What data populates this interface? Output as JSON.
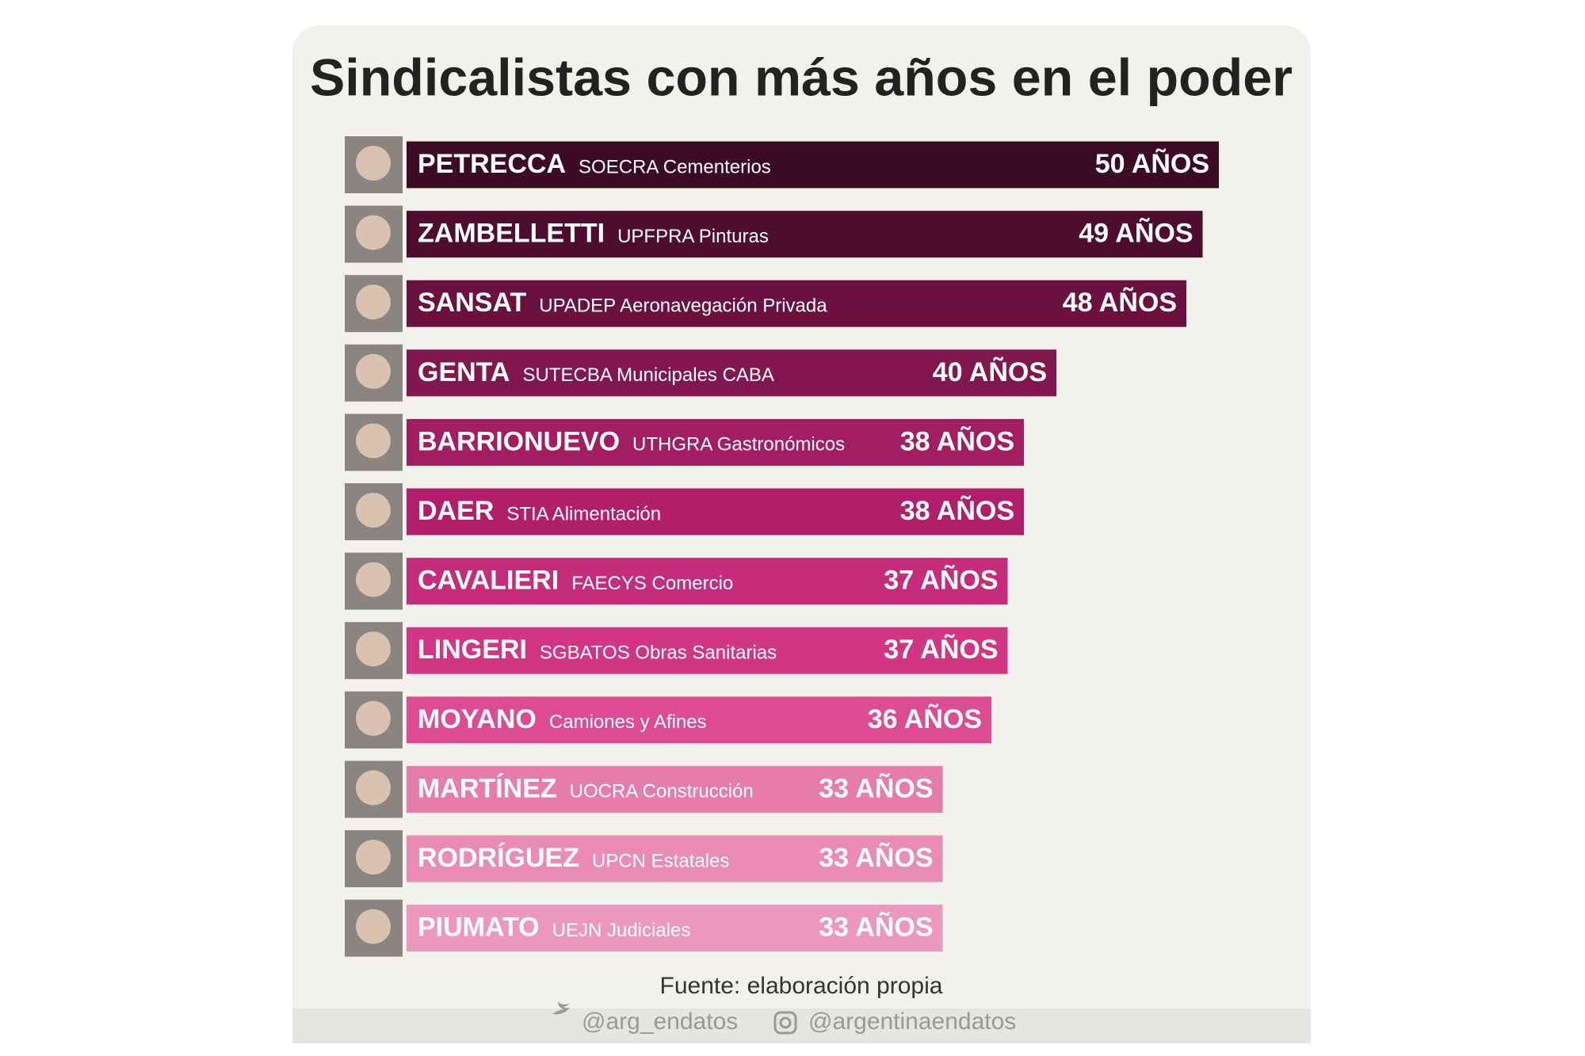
{
  "chart_data": {
    "type": "bar",
    "orientation": "horizontal",
    "title": "Sindicalistas con más años en el poder",
    "categories": [
      "PETRECCA",
      "ZAMBELLETTI",
      "SANSAT",
      "GENTA",
      "BARRIONUEVO",
      "DAER",
      "CAVALIERI",
      "LINGERI",
      "MOYANO",
      "MARTÍNEZ",
      "RODRÍGUEZ",
      "PIUMATO"
    ],
    "unions": [
      "SOECRA Cementerios",
      "UPFPRA Pinturas",
      "UPADEP Aeronavegación Privada",
      "SUTECBA Municipales CABA",
      "UTHGRA Gastronómicos",
      "STIA Alimentación",
      "FAECYS Comercio",
      "SGBATOS Obras Sanitarias",
      "Camiones y Afines",
      "UOCRA Construcción",
      "UPCN Estatales",
      "UEJN Judiciales"
    ],
    "values": [
      50,
      49,
      48,
      40,
      38,
      38,
      37,
      37,
      36,
      33,
      33,
      33
    ],
    "value_labels": [
      "50 AÑOS",
      "49 AÑOS",
      "48 AÑOS",
      "40 AÑOS",
      "38 AÑOS",
      "38 AÑOS",
      "37 AÑOS",
      "37 AÑOS",
      "36 AÑOS",
      "33 AÑOS",
      "33 AÑOS",
      "33 AÑOS"
    ],
    "colors": [
      "#3b0a24",
      "#4e0c2f",
      "#6a1140",
      "#82164f",
      "#a31d63",
      "#b11f6c",
      "#c62c7c",
      "#d23584",
      "#dd4c93",
      "#e67cab",
      "#e98bb4",
      "#ec97bc"
    ],
    "source": "Fuente: elaboración propia",
    "credits": [
      "@arg_endatos",
      "@argentinaendatos"
    ]
  }
}
